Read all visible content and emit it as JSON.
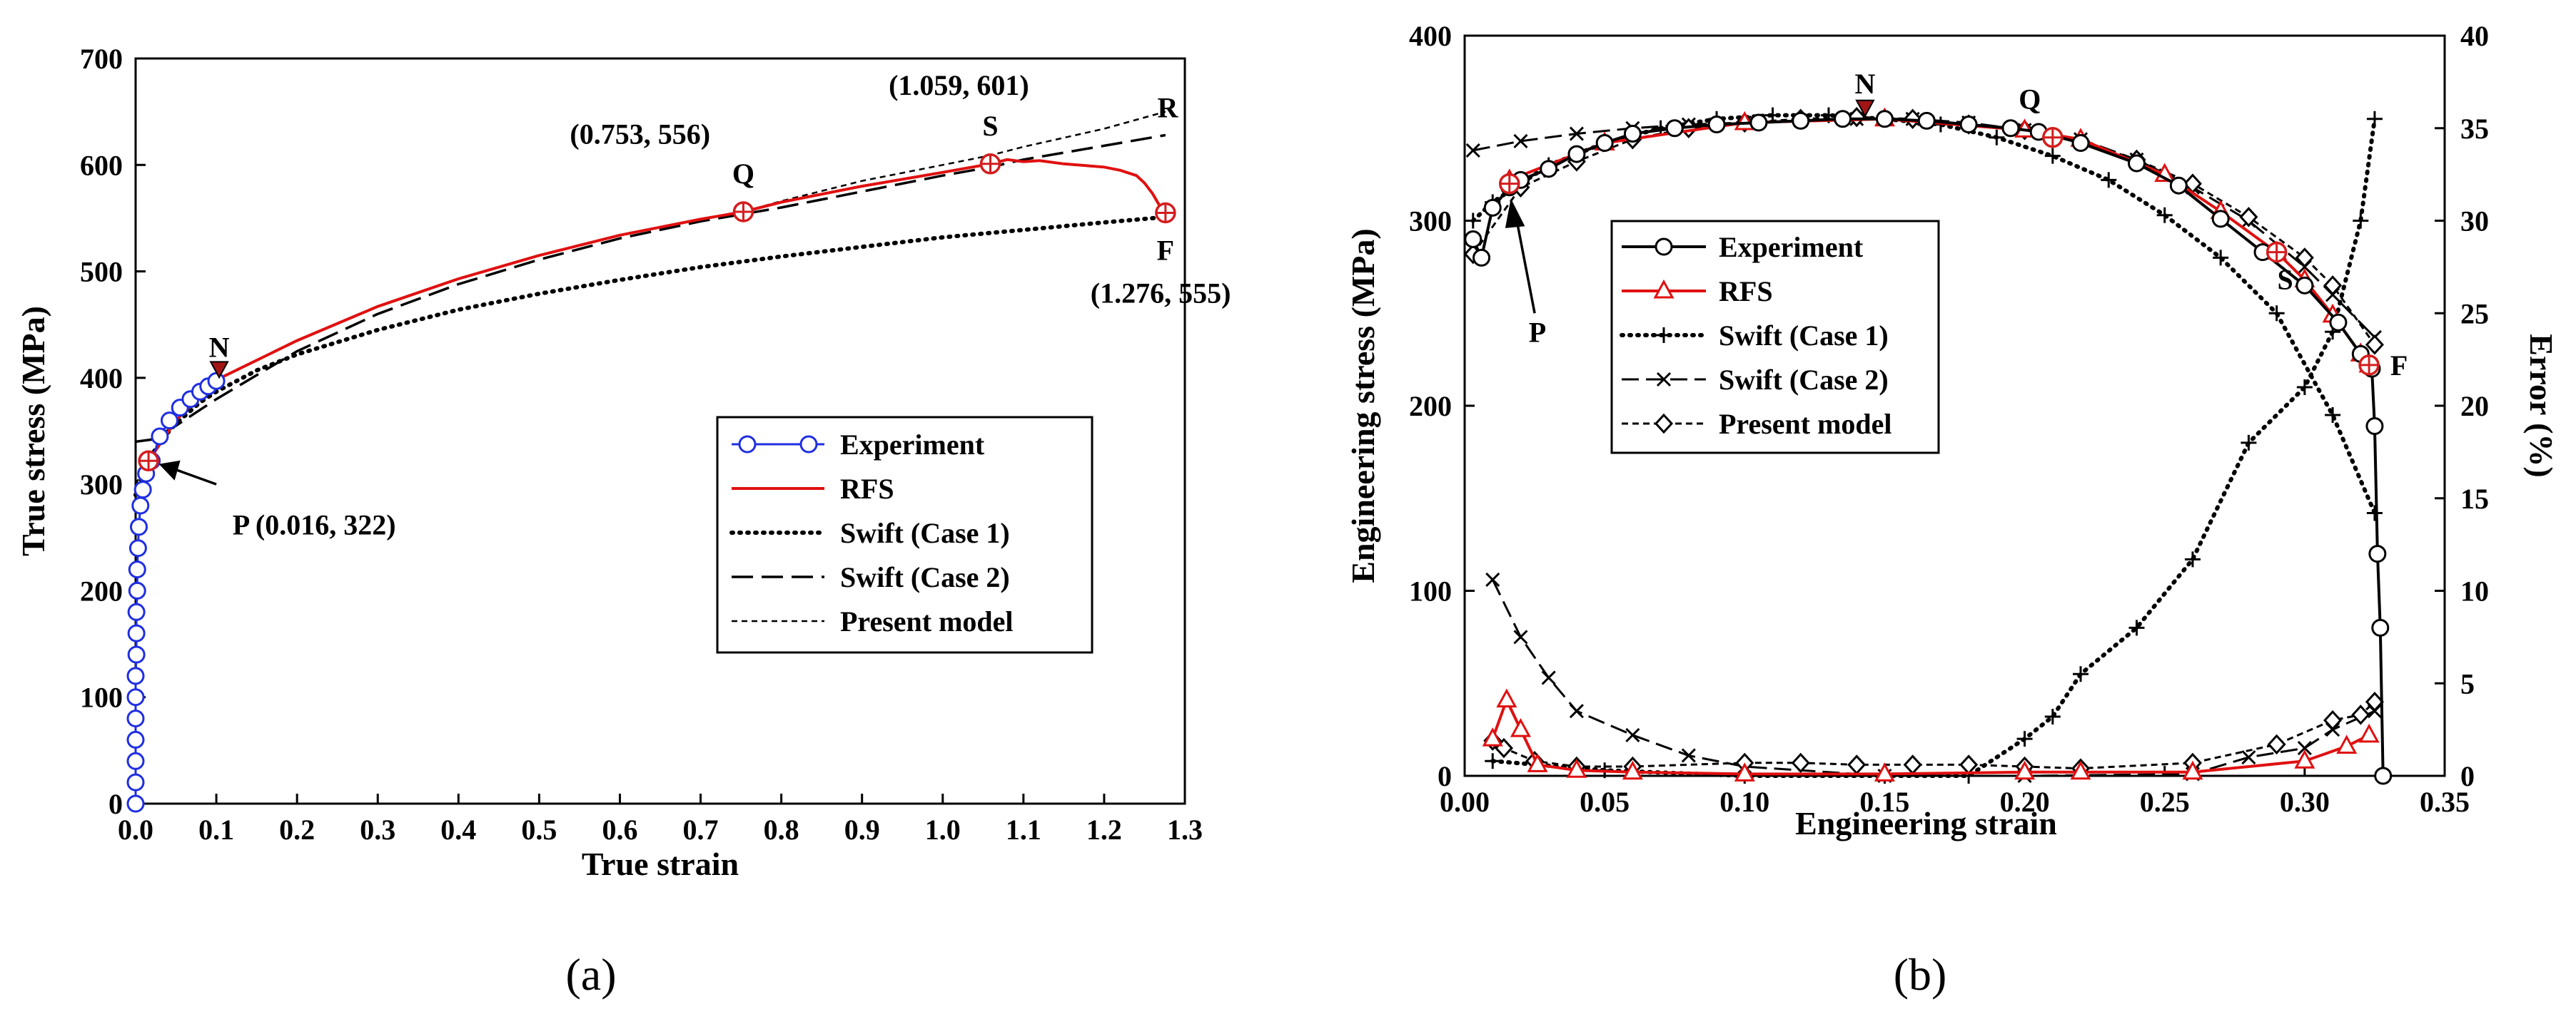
{
  "colors": {
    "experiment_a": "#1f2fe0",
    "rfs": "#e01010",
    "black": "#000000",
    "marker_red": "#d41d1d",
    "point_n": "#1f2fe0"
  },
  "chart_data": [
    {
      "id": "a",
      "type": "line",
      "panel_label": "(a)",
      "xlabel": "True strain",
      "ylabel": "True stress (MPa)",
      "xlim": [
        0,
        1.3
      ],
      "ylim": [
        0,
        700
      ],
      "xticks": [
        "0.0",
        "0.1",
        "0.2",
        "0.3",
        "0.4",
        "0.5",
        "0.6",
        "0.7",
        "0.8",
        "0.9",
        "1.0",
        "1.1",
        "1.2",
        "1.3"
      ],
      "yticks": [
        "0",
        "100",
        "200",
        "300",
        "400",
        "500",
        "600",
        "700"
      ],
      "legend": {
        "placement": "center-right",
        "entries": [
          {
            "label": "Experiment",
            "style": "blue-circle"
          },
          {
            "label": "RFS",
            "style": "red-solid"
          },
          {
            "label": "Swift (Case 1)",
            "style": "dotted"
          },
          {
            "label": "Swift (Case 2)",
            "style": "long-dash"
          },
          {
            "label": "Present model",
            "style": "short-dash"
          }
        ]
      },
      "series": [
        {
          "name": "Experiment",
          "x": [
            0,
            0,
            0,
            0,
            0,
            0,
            0,
            0.001,
            0.001,
            0.001,
            0.002,
            0.002,
            0.003,
            0.004,
            0.006,
            0.009,
            0.013,
            0.02,
            0.03,
            0.042,
            0.055,
            0.068,
            0.08,
            0.09,
            0.1
          ],
          "y": [
            0,
            20,
            40,
            60,
            80,
            100,
            120,
            140,
            160,
            180,
            200,
            220,
            240,
            260,
            280,
            295,
            310,
            322,
            345,
            360,
            372,
            380,
            387,
            392,
            397
          ]
        },
        {
          "name": "RFS",
          "x": [
            0.016,
            0.05,
            0.1,
            0.2,
            0.3,
            0.4,
            0.5,
            0.6,
            0.7,
            0.753,
            0.8,
            0.9,
            1.0,
            1.059,
            1.08,
            1.1,
            1.12,
            1.15,
            1.2,
            1.22,
            1.24,
            1.25,
            1.26,
            1.27,
            1.276
          ],
          "y": [
            322,
            360,
            398,
            435,
            467,
            493,
            515,
            534,
            549,
            556,
            565,
            580,
            593,
            601,
            605,
            603,
            604,
            601,
            598,
            595,
            590,
            583,
            573,
            560,
            555
          ]
        },
        {
          "name": "Swift (Case 1)",
          "x": [
            0,
            0.005,
            0.016,
            0.03,
            0.05,
            0.08,
            0.1,
            0.15,
            0.2,
            0.3,
            0.4,
            0.5,
            0.6,
            0.7,
            0.8,
            0.9,
            1.0,
            1.1,
            1.2,
            1.276
          ],
          "y": [
            290,
            300,
            322,
            340,
            357,
            377,
            387,
            407,
            422,
            445,
            464,
            479,
            492,
            504,
            514,
            523,
            532,
            539,
            546,
            551
          ]
        },
        {
          "name": "Swift (Case 2)",
          "x": [
            0,
            0.02,
            0.05,
            0.1,
            0.2,
            0.3,
            0.4,
            0.5,
            0.6,
            0.7,
            0.8,
            0.9,
            1.0,
            1.059,
            1.1,
            1.2,
            1.276
          ],
          "y": [
            340,
            342,
            355,
            380,
            425,
            460,
            488,
            511,
            531,
            547,
            560,
            575,
            590,
            598,
            605,
            618,
            628
          ]
        },
        {
          "name": "Present model",
          "x": [
            0,
            0.016,
            0.05,
            0.1,
            0.2,
            0.3,
            0.4,
            0.5,
            0.6,
            0.7,
            0.753,
            0.8,
            0.9,
            1.0,
            1.059,
            1.1,
            1.2,
            1.276
          ],
          "y": [
            300,
            322,
            360,
            398,
            435,
            467,
            493,
            515,
            534,
            549,
            556,
            566,
            585,
            600,
            609,
            617,
            634,
            650
          ]
        }
      ],
      "annotations": [
        {
          "label": "P (0.016, 322)",
          "x": 0.016,
          "y": 322
        },
        {
          "label": "Q",
          "x": 0.753,
          "y": 556
        },
        {
          "label": "(0.753, 556)",
          "x": 0.753,
          "y": 556
        },
        {
          "label": "S",
          "x": 1.059,
          "y": 601
        },
        {
          "label": "(1.059, 601)",
          "x": 1.059,
          "y": 601
        },
        {
          "label": "F",
          "x": 1.276,
          "y": 555
        },
        {
          "label": "(1.276, 555)",
          "x": 1.276,
          "y": 555
        },
        {
          "label": "N",
          "x": 0.1,
          "y": 397
        },
        {
          "label": "R",
          "x": 1.3,
          "y": 650
        }
      ]
    },
    {
      "id": "b",
      "type": "line",
      "panel_label": "(b)",
      "xlabel": "Engineering strain",
      "ylabel": "Engineering stress (MPa)",
      "y2label": "Error (%)",
      "xlim": [
        0,
        0.35
      ],
      "ylim": [
        0,
        400
      ],
      "y2lim": [
        0,
        40
      ],
      "xticks": [
        "0.00",
        "0.05",
        "0.10",
        "0.15",
        "0.20",
        "0.25",
        "0.30",
        "0.35"
      ],
      "yticks": [
        "0",
        "100",
        "200",
        "300",
        "400"
      ],
      "y2ticks": [
        "0",
        "5",
        "10",
        "15",
        "20",
        "25",
        "30",
        "35",
        "40"
      ],
      "legend": {
        "placement": "center-left",
        "entries": [
          {
            "label": "Experiment",
            "style": "black-circle"
          },
          {
            "label": "RFS",
            "style": "red-triangle"
          },
          {
            "label": "Swift (Case 1)",
            "style": "dotted-plus"
          },
          {
            "label": "Swift (Case 2)",
            "style": "dash-x"
          },
          {
            "label": "Present model",
            "style": "short-dash-diamond"
          }
        ]
      },
      "series": [
        {
          "name": "Experiment",
          "axis": "left",
          "x": [
            0.003,
            0.006,
            0.01,
            0.016,
            0.02,
            0.03,
            0.04,
            0.05,
            0.06,
            0.075,
            0.09,
            0.105,
            0.12,
            0.135,
            0.15,
            0.165,
            0.18,
            0.195,
            0.205,
            0.22,
            0.24,
            0.255,
            0.27,
            0.285,
            0.3,
            0.312,
            0.32,
            0.324,
            0.325,
            0.326,
            0.327,
            0.328
          ],
          "y": [
            290,
            280,
            307,
            318,
            322,
            328,
            336,
            342,
            347,
            350,
            352,
            353,
            354,
            355,
            355,
            354,
            352,
            350,
            348,
            342,
            331,
            319,
            301,
            283,
            265,
            245,
            228,
            220,
            189,
            120,
            80,
            0
          ]
        },
        {
          "name": "RFS",
          "axis": "left",
          "x": [
            0.016,
            0.05,
            0.1,
            0.15,
            0.2,
            0.22,
            0.25,
            0.27,
            0.29,
            0.3,
            0.31,
            0.32,
            0.323
          ],
          "y": [
            322,
            342,
            353,
            355,
            349,
            344,
            325,
            305,
            283,
            268,
            249,
            228,
            222
          ]
        },
        {
          "name": "Swift (Case 1)",
          "axis": "left",
          "x": [
            0.003,
            0.01,
            0.02,
            0.03,
            0.05,
            0.07,
            0.09,
            0.11,
            0.13,
            0.15,
            0.17,
            0.19,
            0.21,
            0.23,
            0.25,
            0.27,
            0.29,
            0.31,
            0.325
          ],
          "y": [
            300,
            310,
            320,
            330,
            342,
            350,
            355,
            357,
            357,
            355,
            352,
            345,
            335,
            322,
            303,
            280,
            250,
            195,
            142
          ]
        },
        {
          "name": "Swift (Case 2)",
          "axis": "left",
          "x": [
            0.003,
            0.02,
            0.04,
            0.06,
            0.08,
            0.1,
            0.12,
            0.14,
            0.16,
            0.18,
            0.2,
            0.22,
            0.24,
            0.26,
            0.28,
            0.3,
            0.31,
            0.325
          ],
          "y": [
            338,
            343,
            347,
            350,
            352,
            353,
            354,
            355,
            355,
            353,
            349,
            344,
            333,
            318,
            300,
            275,
            260,
            237
          ]
        },
        {
          "name": "Present model",
          "axis": "left",
          "x": [
            0.003,
            0.02,
            0.04,
            0.06,
            0.08,
            0.1,
            0.12,
            0.14,
            0.16,
            0.18,
            0.2,
            0.22,
            0.24,
            0.26,
            0.28,
            0.3,
            0.31,
            0.325
          ],
          "y": [
            282,
            318,
            332,
            344,
            350,
            353,
            355,
            356,
            355,
            352,
            349,
            343,
            333,
            320,
            302,
            280,
            265,
            233
          ]
        },
        {
          "name": "Swift (Case 1) error",
          "axis": "right",
          "x": [
            0.01,
            0.05,
            0.1,
            0.15,
            0.18,
            0.2,
            0.21,
            0.22,
            0.24,
            0.26,
            0.28,
            0.3,
            0.31,
            0.32,
            0.325
          ],
          "y": [
            0.8,
            0.3,
            0,
            0,
            0,
            2,
            3.2,
            5.5,
            8,
            11.7,
            18,
            21,
            24,
            30,
            35.5
          ]
        },
        {
          "name": "Swift (Case 2) error",
          "axis": "right",
          "x": [
            0.01,
            0.02,
            0.03,
            0.04,
            0.06,
            0.08,
            0.1,
            0.15,
            0.2,
            0.26,
            0.28,
            0.3,
            0.31,
            0.325
          ],
          "y": [
            10.6,
            7.5,
            5.3,
            3.5,
            2.2,
            1.1,
            0.5,
            0,
            0,
            0.1,
            1,
            1.5,
            2.5,
            3.5
          ]
        },
        {
          "name": "RFS error",
          "axis": "right",
          "x": [
            0.01,
            0.015,
            0.02,
            0.026,
            0.04,
            0.06,
            0.1,
            0.15,
            0.2,
            0.22,
            0.26,
            0.3,
            0.315,
            0.323
          ],
          "y": [
            2,
            4.1,
            2.5,
            0.6,
            0.3,
            0.2,
            0.1,
            0.1,
            0.2,
            0.2,
            0.2,
            0.8,
            1.6,
            2.2
          ]
        },
        {
          "name": "Present model error",
          "axis": "right",
          "x": [
            0.01,
            0.014,
            0.025,
            0.04,
            0.06,
            0.1,
            0.12,
            0.14,
            0.16,
            0.18,
            0.2,
            0.22,
            0.26,
            0.29,
            0.31,
            0.32,
            0.325
          ],
          "y": [
            1.9,
            1.5,
            0.8,
            0.5,
            0.5,
            0.7,
            0.7,
            0.6,
            0.6,
            0.6,
            0.5,
            0.4,
            0.7,
            1.7,
            3,
            3.3,
            4
          ]
        }
      ],
      "annotations": [
        {
          "label": "N",
          "x": 0.143,
          "y": 360
        },
        {
          "label": "P",
          "x": 0.016,
          "y": 310
        },
        {
          "label": "Q",
          "x": 0.21,
          "y": 345
        },
        {
          "label": "S",
          "x": 0.29,
          "y": 283
        },
        {
          "label": "F",
          "x": 0.323,
          "y": 222
        }
      ]
    }
  ]
}
